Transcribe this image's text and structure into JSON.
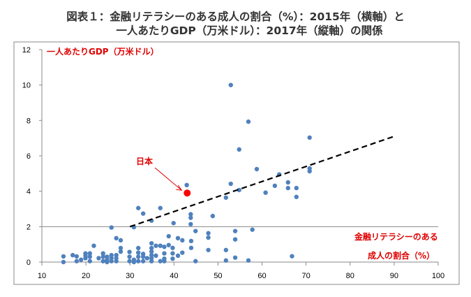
{
  "title_line1": "図表１：金融リテラシーのある成人の割合（%）：2015年（横軸）と",
  "title_line2": "一人あたりGDP（万米ドル）：2017年（縦軸）の関係",
  "chart_data": {
    "type": "scatter",
    "title": "図表１：金融リテラシーのある成人の割合（%）：2015年（横軸）と 一人あたりGDP（万米ドル）：2017年（縦軸）の関係",
    "xlabel_line1": "金融リテラシーのある",
    "xlabel_line2": "成人の割合（%）",
    "ylabel": "一人あたりGDP（万米ドル）",
    "xlim": [
      10,
      100
    ],
    "ylim": [
      0,
      12
    ],
    "xticks": [
      "10",
      "20",
      "30",
      "40",
      "50",
      "60",
      "70",
      "80",
      "90",
      "100"
    ],
    "yticks": [
      "0",
      "2",
      "4",
      "6",
      "8",
      "10",
      "12"
    ],
    "grid": "horizontal line at y=2 only",
    "point_color": "#4f81bd",
    "highlight_color": "#ff0000",
    "highlight": {
      "label": "日本",
      "x": 43,
      "y": 3.9
    },
    "trendline": {
      "style": "dashed",
      "color": "#000000",
      "from": [
        30,
        2.0
      ],
      "to": [
        90,
        7.1
      ]
    },
    "points": [
      [
        52.9,
        10.0
      ],
      [
        56.9,
        7.93
      ],
      [
        54.8,
        6.36
      ],
      [
        58.8,
        5.25
      ],
      [
        70.8,
        7.03
      ],
      [
        70.8,
        5.29
      ],
      [
        70.8,
        5.13
      ],
      [
        52.9,
        4.42
      ],
      [
        54.8,
        4.07
      ],
      [
        51.8,
        3.64
      ],
      [
        60.8,
        3.92
      ],
      [
        62.9,
        4.31
      ],
      [
        63.9,
        4.95
      ],
      [
        65.9,
        4.5
      ],
      [
        65.9,
        4.18
      ],
      [
        67.8,
        4.18
      ],
      [
        67.8,
        3.68
      ],
      [
        48.8,
        2.6
      ],
      [
        47.8,
        1.63
      ],
      [
        47.8,
        1.38
      ],
      [
        53.9,
        1.75
      ],
      [
        53.9,
        1.28
      ],
      [
        57.8,
        1.83
      ],
      [
        47.8,
        0.68
      ],
      [
        51.8,
        0.68
      ],
      [
        53.9,
        0.25
      ],
      [
        51.8,
        0.09
      ],
      [
        56.9,
        0.09
      ],
      [
        66.8,
        0.33
      ],
      [
        42.9,
        4.35
      ],
      [
        14.9,
        0.32
      ],
      [
        14.9,
        0
      ],
      [
        17,
        0.39
      ],
      [
        17.9,
        0.32
      ],
      [
        17.9,
        0.05
      ],
      [
        18.9,
        0.13
      ],
      [
        19.9,
        0.49
      ],
      [
        19.9,
        0.36
      ],
      [
        19.9,
        0.22
      ],
      [
        20.9,
        0.49
      ],
      [
        20.9,
        0.3
      ],
      [
        20.9,
        0.05
      ],
      [
        21.8,
        0.92
      ],
      [
        22.9,
        0.22
      ],
      [
        23.9,
        0.49
      ],
      [
        23.9,
        0.3
      ],
      [
        23.9,
        0.05
      ],
      [
        24.8,
        0.3
      ],
      [
        24.8,
        0.13
      ],
      [
        24.8,
        0
      ],
      [
        25.8,
        0.39
      ],
      [
        25.8,
        0.22
      ],
      [
        25.8,
        0.05
      ],
      [
        25.8,
        1.95
      ],
      [
        26.9,
        1.35
      ],
      [
        27.9,
        1.23
      ],
      [
        26.9,
        0.39
      ],
      [
        26.9,
        0.22
      ],
      [
        26.9,
        0.05
      ],
      [
        27.9,
        0.79
      ],
      [
        27.9,
        0.59
      ],
      [
        29.9,
        0.57
      ],
      [
        29.9,
        0.3
      ],
      [
        29.9,
        0.05
      ],
      [
        30.9,
        0.13
      ],
      [
        30.9,
        0
      ],
      [
        30.9,
        1.97
      ],
      [
        31.9,
        3.05
      ],
      [
        33,
        2.74
      ],
      [
        31.9,
        0.79
      ],
      [
        31.9,
        0.53
      ],
      [
        31.9,
        0.3
      ],
      [
        31.9,
        0.05
      ],
      [
        33,
        0.46
      ],
      [
        33,
        0.3
      ],
      [
        33,
        0.05
      ],
      [
        33.9,
        0.22
      ],
      [
        34.9,
        2.34
      ],
      [
        34.9,
        1.06
      ],
      [
        34.9,
        0.79
      ],
      [
        34.9,
        0.59
      ],
      [
        34.9,
        0.39
      ],
      [
        34.9,
        0.22
      ],
      [
        34.9,
        0.05
      ],
      [
        35.9,
        0.92
      ],
      [
        35.9,
        0.36
      ],
      [
        36.9,
        3.05
      ],
      [
        36.9,
        0.92
      ],
      [
        36.9,
        0.05
      ],
      [
        37.8,
        0.86
      ],
      [
        37.8,
        0.49
      ],
      [
        37.8,
        0.19
      ],
      [
        37.8,
        0.05
      ],
      [
        38.8,
        1.46
      ],
      [
        38.8,
        0.96
      ],
      [
        39.9,
        2.2
      ],
      [
        39.7,
        0.8
      ],
      [
        39.7,
        0.49
      ],
      [
        39.7,
        0.19
      ],
      [
        40.9,
        1.35
      ],
      [
        40.9,
        0.36
      ],
      [
        41.9,
        1.23
      ],
      [
        41.9,
        0.53
      ],
      [
        43.8,
        2.7
      ],
      [
        43.8,
        2.5
      ],
      [
        43.8,
        2.14
      ],
      [
        43.9,
        1.19
      ],
      [
        43.9,
        0.8
      ],
      [
        44.9,
        1.75
      ],
      [
        44.9,
        0.05
      ]
    ]
  }
}
